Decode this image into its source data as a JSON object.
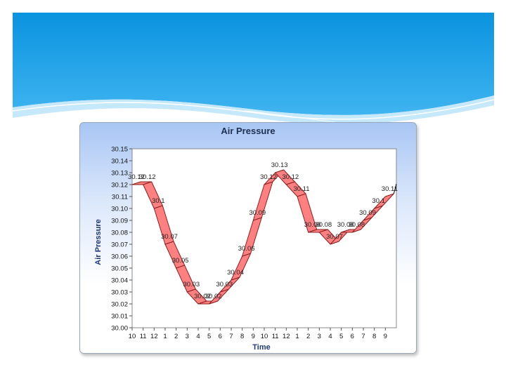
{
  "colors": {
    "banner_top": "#0a93df",
    "banner_bottom": "#3fb4f0",
    "ribbon": "#ff8080",
    "ribbon_edge": "#8b1e1e"
  },
  "chart_data": {
    "type": "line",
    "title": "Air Pressure",
    "xlabel": "Time",
    "ylabel": "Air Pressure",
    "ylim": [
      30.0,
      30.15
    ],
    "y_step": 0.01,
    "grid": false,
    "categories": [
      "10",
      "11",
      "12",
      "1",
      "2",
      "3",
      "4",
      "5",
      "6",
      "7",
      "8",
      "9",
      "10",
      "11",
      "12",
      "1",
      "2",
      "3",
      "4",
      "5",
      "6",
      "7",
      "8",
      "9"
    ],
    "series": [
      {
        "values": [
          30.12,
          30.12,
          30.1,
          30.07,
          30.05,
          30.03,
          30.02,
          30.02,
          30.03,
          30.04,
          30.06,
          30.09,
          30.12,
          30.13,
          30.12,
          30.11,
          30.08,
          30.08,
          30.07,
          30.08,
          30.08,
          30.09,
          30.1,
          30.11
        ],
        "labels": [
          "30.12",
          "30.12",
          "30.1",
          "30.07",
          "30.05",
          "30.03",
          "30.02",
          "30.02",
          "30.03",
          "30.04",
          "30.06",
          "30.09",
          "30.12",
          "30.13",
          "30.12",
          "30.11",
          "30.08",
          "30.08",
          "30.07",
          "30.08",
          "30.08",
          "30.09",
          "30.1",
          "30.11"
        ]
      }
    ]
  }
}
